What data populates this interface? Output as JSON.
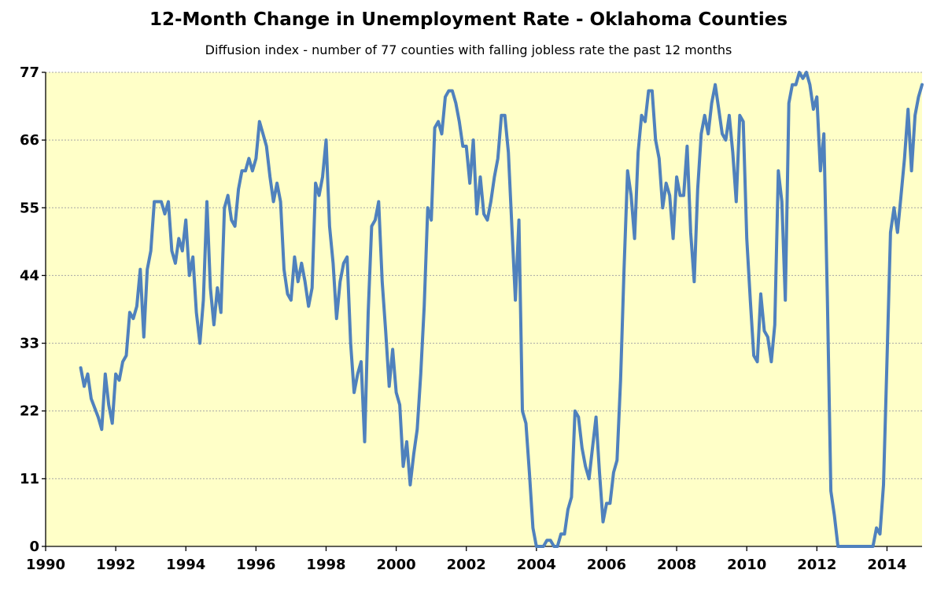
{
  "chart_data": {
    "type": "line",
    "title": "12-Month Change in Unemployment Rate - Oklahoma Counties",
    "subtitle": "Diffusion index - number of 77 counties with falling jobless rate the past 12 months",
    "xlabel": "",
    "ylabel": "",
    "xlim": [
      1990,
      2015
    ],
    "ylim": [
      0,
      77
    ],
    "x_ticks": [
      1990,
      1992,
      1994,
      1996,
      1998,
      2000,
      2002,
      2004,
      2006,
      2008,
      2010,
      2012,
      2014
    ],
    "y_ticks": [
      0,
      11,
      22,
      33,
      44,
      55,
      66,
      77
    ],
    "grid": true,
    "colors": {
      "line": "#4f81bd",
      "plot_background": "#ffffc8",
      "gridline": "#a6a6a6"
    },
    "series": [
      {
        "values": [
          [
            1991.0,
            29
          ],
          [
            1991.1,
            26
          ],
          [
            1991.2,
            28
          ],
          [
            1991.3,
            24
          ],
          [
            1991.5,
            21
          ],
          [
            1991.6,
            19
          ],
          [
            1991.7,
            28
          ],
          [
            1991.8,
            23
          ],
          [
            1991.9,
            20
          ],
          [
            1992.0,
            28
          ],
          [
            1992.1,
            27
          ],
          [
            1992.2,
            30
          ],
          [
            1992.3,
            31
          ],
          [
            1992.4,
            38
          ],
          [
            1992.5,
            37
          ],
          [
            1992.6,
            39
          ],
          [
            1992.7,
            45
          ],
          [
            1992.8,
            34
          ],
          [
            1992.9,
            45
          ],
          [
            1993.0,
            48
          ],
          [
            1993.1,
            56
          ],
          [
            1993.3,
            56
          ],
          [
            1993.4,
            54
          ],
          [
            1993.5,
            56
          ],
          [
            1993.6,
            48
          ],
          [
            1993.7,
            46
          ],
          [
            1993.8,
            50
          ],
          [
            1993.9,
            48
          ],
          [
            1994.0,
            53
          ],
          [
            1994.1,
            44
          ],
          [
            1994.2,
            47
          ],
          [
            1994.3,
            38
          ],
          [
            1994.4,
            33
          ],
          [
            1994.5,
            40
          ],
          [
            1994.6,
            56
          ],
          [
            1994.7,
            42
          ],
          [
            1994.8,
            36
          ],
          [
            1994.9,
            42
          ],
          [
            1995.0,
            38
          ],
          [
            1995.1,
            55
          ],
          [
            1995.2,
            57
          ],
          [
            1995.3,
            53
          ],
          [
            1995.4,
            52
          ],
          [
            1995.5,
            58
          ],
          [
            1995.6,
            61
          ],
          [
            1995.7,
            61
          ],
          [
            1995.8,
            63
          ],
          [
            1995.9,
            61
          ],
          [
            1996.0,
            63
          ],
          [
            1996.1,
            69
          ],
          [
            1996.2,
            67
          ],
          [
            1996.3,
            65
          ],
          [
            1996.4,
            60
          ],
          [
            1996.5,
            56
          ],
          [
            1996.6,
            59
          ],
          [
            1996.7,
            56
          ],
          [
            1996.8,
            45
          ],
          [
            1996.9,
            41
          ],
          [
            1997.0,
            40
          ],
          [
            1997.1,
            47
          ],
          [
            1997.2,
            43
          ],
          [
            1997.3,
            46
          ],
          [
            1997.4,
            43
          ],
          [
            1997.5,
            39
          ],
          [
            1997.6,
            42
          ],
          [
            1997.7,
            59
          ],
          [
            1997.8,
            57
          ],
          [
            1997.9,
            60
          ],
          [
            1998.0,
            66
          ],
          [
            1998.1,
            52
          ],
          [
            1998.2,
            46
          ],
          [
            1998.3,
            37
          ],
          [
            1998.4,
            43
          ],
          [
            1998.5,
            46
          ],
          [
            1998.6,
            47
          ],
          [
            1998.7,
            33
          ],
          [
            1998.8,
            25
          ],
          [
            1998.9,
            28
          ],
          [
            1999.0,
            30
          ],
          [
            1999.1,
            17
          ],
          [
            1999.2,
            38
          ],
          [
            1999.3,
            52
          ],
          [
            1999.4,
            53
          ],
          [
            1999.5,
            56
          ],
          [
            1999.6,
            43
          ],
          [
            1999.7,
            35
          ],
          [
            1999.8,
            26
          ],
          [
            1999.9,
            32
          ],
          [
            2000.0,
            25
          ],
          [
            2000.1,
            23
          ],
          [
            2000.2,
            13
          ],
          [
            2000.3,
            17
          ],
          [
            2000.4,
            10
          ],
          [
            2000.5,
            15
          ],
          [
            2000.6,
            19
          ],
          [
            2000.7,
            28
          ],
          [
            2000.8,
            39
          ],
          [
            2000.9,
            55
          ],
          [
            2001.0,
            53
          ],
          [
            2001.1,
            68
          ],
          [
            2001.2,
            69
          ],
          [
            2001.3,
            67
          ],
          [
            2001.4,
            73
          ],
          [
            2001.5,
            74
          ],
          [
            2001.6,
            74
          ],
          [
            2001.7,
            72
          ],
          [
            2001.8,
            69
          ],
          [
            2001.9,
            65
          ],
          [
            2002.0,
            65
          ],
          [
            2002.1,
            59
          ],
          [
            2002.2,
            66
          ],
          [
            2002.3,
            54
          ],
          [
            2002.4,
            60
          ],
          [
            2002.5,
            54
          ],
          [
            2002.6,
            53
          ],
          [
            2002.7,
            56
          ],
          [
            2002.8,
            60
          ],
          [
            2002.9,
            63
          ],
          [
            2003.0,
            70
          ],
          [
            2003.1,
            70
          ],
          [
            2003.2,
            64
          ],
          [
            2003.3,
            52
          ],
          [
            2003.4,
            40
          ],
          [
            2003.5,
            53
          ],
          [
            2003.6,
            22
          ],
          [
            2003.7,
            20
          ],
          [
            2003.8,
            12
          ],
          [
            2003.9,
            3
          ],
          [
            2004.0,
            0
          ],
          [
            2004.1,
            0
          ],
          [
            2004.2,
            0
          ],
          [
            2004.3,
            1
          ],
          [
            2004.4,
            1
          ],
          [
            2004.5,
            0
          ],
          [
            2004.6,
            0
          ],
          [
            2004.7,
            2
          ],
          [
            2004.8,
            2
          ],
          [
            2004.9,
            6
          ],
          [
            2005.0,
            8
          ],
          [
            2005.1,
            22
          ],
          [
            2005.2,
            21
          ],
          [
            2005.3,
            16
          ],
          [
            2005.4,
            13
          ],
          [
            2005.5,
            11
          ],
          [
            2005.6,
            16
          ],
          [
            2005.7,
            21
          ],
          [
            2005.8,
            12
          ],
          [
            2005.9,
            4
          ],
          [
            2006.0,
            7
          ],
          [
            2006.1,
            7
          ],
          [
            2006.2,
            12
          ],
          [
            2006.3,
            14
          ],
          [
            2006.4,
            27
          ],
          [
            2006.5,
            45
          ],
          [
            2006.6,
            61
          ],
          [
            2006.7,
            57
          ],
          [
            2006.8,
            50
          ],
          [
            2006.9,
            64
          ],
          [
            2007.0,
            70
          ],
          [
            2007.1,
            69
          ],
          [
            2007.2,
            74
          ],
          [
            2007.3,
            74
          ],
          [
            2007.4,
            66
          ],
          [
            2007.5,
            63
          ],
          [
            2007.6,
            55
          ],
          [
            2007.7,
            59
          ],
          [
            2007.8,
            57
          ],
          [
            2007.9,
            50
          ],
          [
            2008.0,
            60
          ],
          [
            2008.1,
            57
          ],
          [
            2008.2,
            57
          ],
          [
            2008.3,
            65
          ],
          [
            2008.4,
            51
          ],
          [
            2008.5,
            43
          ],
          [
            2008.6,
            58
          ],
          [
            2008.7,
            67
          ],
          [
            2008.8,
            70
          ],
          [
            2008.9,
            67
          ],
          [
            2009.0,
            72
          ],
          [
            2009.1,
            75
          ],
          [
            2009.2,
            71
          ],
          [
            2009.3,
            67
          ],
          [
            2009.4,
            66
          ],
          [
            2009.5,
            70
          ],
          [
            2009.6,
            64
          ],
          [
            2009.7,
            56
          ],
          [
            2009.8,
            70
          ],
          [
            2009.9,
            69
          ],
          [
            2010.0,
            50
          ],
          [
            2010.1,
            40
          ],
          [
            2010.2,
            31
          ],
          [
            2010.3,
            30
          ],
          [
            2010.4,
            41
          ],
          [
            2010.5,
            35
          ],
          [
            2010.6,
            34
          ],
          [
            2010.7,
            30
          ],
          [
            2010.8,
            36
          ],
          [
            2010.9,
            61
          ],
          [
            2011.0,
            56
          ],
          [
            2011.1,
            40
          ],
          [
            2011.2,
            72
          ],
          [
            2011.3,
            75
          ],
          [
            2011.4,
            75
          ],
          [
            2011.5,
            77
          ],
          [
            2011.6,
            76
          ],
          [
            2011.7,
            77
          ],
          [
            2011.8,
            75
          ],
          [
            2011.9,
            71
          ],
          [
            2012.0,
            73
          ],
          [
            2012.1,
            61
          ],
          [
            2012.2,
            67
          ],
          [
            2012.3,
            40
          ],
          [
            2012.4,
            9
          ],
          [
            2012.5,
            5
          ],
          [
            2012.6,
            0
          ],
          [
            2012.7,
            0
          ],
          [
            2012.8,
            0
          ],
          [
            2013.0,
            0
          ],
          [
            2013.2,
            0
          ],
          [
            2013.4,
            0
          ],
          [
            2013.6,
            0
          ],
          [
            2013.7,
            3
          ],
          [
            2013.8,
            2
          ],
          [
            2013.9,
            10
          ],
          [
            2014.0,
            30
          ],
          [
            2014.1,
            51
          ],
          [
            2014.2,
            55
          ],
          [
            2014.3,
            51
          ],
          [
            2014.4,
            57
          ],
          [
            2014.5,
            63
          ],
          [
            2014.6,
            71
          ],
          [
            2014.7,
            61
          ],
          [
            2014.8,
            70
          ],
          [
            2014.9,
            73
          ],
          [
            2015.0,
            75
          ]
        ]
      }
    ]
  }
}
